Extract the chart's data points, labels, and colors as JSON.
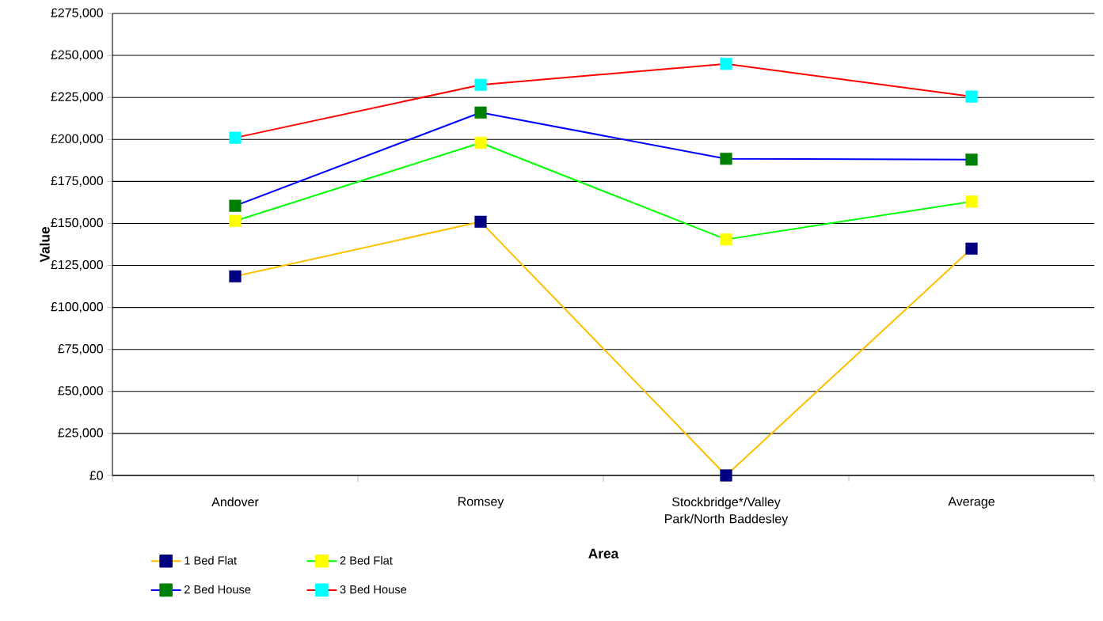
{
  "chart_data": {
    "type": "line",
    "xlabel": "Area",
    "ylabel": "Value",
    "categories": [
      "Andover",
      "Romsey",
      "Stockbridge*/Valley Park/North Baddesley",
      "Average"
    ],
    "series": [
      {
        "name": "1 Bed Flat",
        "color": "#ffc000",
        "colors": [
          "#000080",
          "#000080",
          "#000080",
          "#000080"
        ],
        "values": [
          118500,
          151000,
          0,
          135000
        ]
      },
      {
        "name": "2 Bed Flat",
        "color": "#00ff00",
        "colors": [
          "#ffff00",
          "#ffff00",
          "#ffff00",
          "#ffff00"
        ],
        "values": [
          151500,
          198000,
          140500,
          163000
        ]
      },
      {
        "name": "2 Bed House",
        "color": "#0000ff",
        "colors": [
          "#008000",
          "#008000",
          "#008000",
          "#008000"
        ],
        "values": [
          160500,
          216000,
          188500,
          188000
        ]
      },
      {
        "name": "3 Bed House",
        "color": "#ff0000",
        "colors": [
          "#00ffff",
          "#00ffff",
          "#00ffff",
          "#00ffff"
        ],
        "values": [
          201000,
          232500,
          245000,
          225500
        ]
      }
    ],
    "ylim": [
      0,
      275000
    ],
    "yticks": [
      {
        "value": 0,
        "label": "£0"
      },
      {
        "value": 25000,
        "label": "£25,000"
      },
      {
        "value": 50000,
        "label": "£50,000"
      },
      {
        "value": 75000,
        "label": "£75,000"
      },
      {
        "value": 100000,
        "label": "£100,000"
      },
      {
        "value": 125000,
        "label": "£125,000"
      },
      {
        "value": 150000,
        "label": "£150,000"
      },
      {
        "value": 175000,
        "label": "£175,000"
      },
      {
        "value": 200000,
        "label": "£200,000"
      },
      {
        "value": 225000,
        "label": "£225,000"
      },
      {
        "value": 250000,
        "label": "£250,000"
      },
      {
        "value": 275000,
        "label": "£275,000"
      }
    ],
    "grid": "y",
    "legend": "bottom",
    "marker": "square",
    "line_style": "solid"
  }
}
